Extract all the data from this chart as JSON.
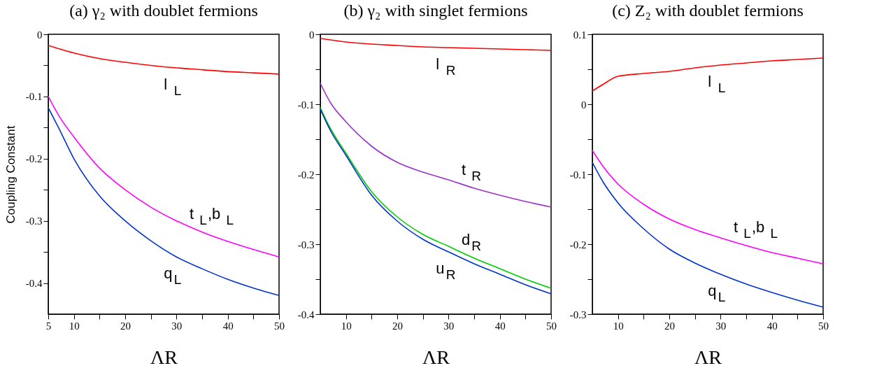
{
  "chart_data": [
    {
      "type": "line",
      "title": "(a)  γ₂  with doublet fermions",
      "xlabel": "ΛR",
      "ylabel": "Coupling Constant",
      "grid": false,
      "legend": false,
      "x": [
        5,
        7,
        10,
        15,
        20,
        25,
        30,
        35,
        40,
        45,
        50
      ],
      "xlim": [
        5,
        50
      ],
      "xticks": [
        5,
        10,
        {
          "value": 15,
          "label": null
        },
        20,
        {
          "value": 25,
          "label": null
        },
        30,
        {
          "value": 35,
          "label": null
        },
        40,
        {
          "value": 45,
          "label": null
        },
        50
      ],
      "ylim": [
        -0.45,
        0
      ],
      "yticks": [
        0,
        {
          "value": -0.05,
          "label": null
        },
        -0.1,
        {
          "value": -0.15,
          "label": null
        },
        -0.2,
        {
          "value": -0.25,
          "label": null
        },
        -0.3,
        {
          "value": -0.35,
          "label": null
        },
        -0.4
      ],
      "series": [
        {
          "name": "l$_{L}$",
          "color": "#ff0000",
          "values": [
            -0.018,
            -0.023,
            -0.03,
            -0.039,
            -0.045,
            -0.05,
            -0.054,
            -0.057,
            -0.06,
            -0.062,
            -0.064
          ]
        },
        {
          "name": "t$_{L}$,b$_{L}$",
          "color": "#ff00ff",
          "values": [
            -0.1,
            -0.13,
            -0.165,
            -0.215,
            -0.25,
            -0.278,
            -0.3,
            -0.318,
            -0.333,
            -0.346,
            -0.358
          ]
        },
        {
          "name": "q$_{L}$",
          "color": "#0033cc",
          "values": [
            -0.118,
            -0.15,
            -0.2,
            -0.26,
            -0.3,
            -0.332,
            -0.358,
            -0.377,
            -0.394,
            -0.408,
            -0.42
          ]
        }
      ]
    },
    {
      "type": "line",
      "title": "(b)  γ₂  with singlet fermions",
      "xlabel": "ΛR",
      "grid": false,
      "legend": false,
      "x": [
        5,
        7,
        10,
        15,
        20,
        25,
        30,
        35,
        40,
        45,
        50
      ],
      "xlim": [
        5,
        50
      ],
      "xticks": [
        10,
        {
          "value": 15,
          "label": null
        },
        20,
        {
          "value": 25,
          "label": null
        },
        30,
        {
          "value": 35,
          "label": null
        },
        40,
        {
          "value": 45,
          "label": null
        },
        50
      ],
      "ylim": [
        -0.4,
        0
      ],
      "yticks": [
        0,
        {
          "value": -0.05,
          "label": null
        },
        -0.1,
        {
          "value": -0.15,
          "label": null
        },
        -0.2,
        {
          "value": -0.25,
          "label": null
        },
        -0.3,
        {
          "value": -0.35,
          "label": null
        },
        -0.4
      ],
      "series": [
        {
          "name": "l$_{R}$",
          "color": "#ff0000",
          "values": [
            -0.006,
            -0.008,
            -0.011,
            -0.014,
            -0.016,
            -0.018,
            -0.019,
            -0.02,
            -0.021,
            -0.022,
            -0.023
          ]
        },
        {
          "name": "t$_{R}$",
          "color": "#9933cc",
          "values": [
            -0.07,
            -0.098,
            -0.125,
            -0.16,
            -0.183,
            -0.197,
            -0.208,
            -0.22,
            -0.23,
            -0.239,
            -0.247
          ]
        },
        {
          "name": "d$_{R}$",
          "color": "#00cc00",
          "values": [
            -0.105,
            -0.135,
            -0.17,
            -0.225,
            -0.261,
            -0.286,
            -0.303,
            -0.32,
            -0.335,
            -0.35,
            -0.363
          ]
        },
        {
          "name": "u$_{R}$",
          "color": "#0033cc",
          "values": [
            -0.107,
            -0.138,
            -0.173,
            -0.23,
            -0.267,
            -0.293,
            -0.311,
            -0.328,
            -0.343,
            -0.358,
            -0.371
          ]
        }
      ]
    },
    {
      "type": "line",
      "title": "(c)  Z₂  with doublet fermions",
      "xlabel": "ΛR",
      "grid": false,
      "legend": false,
      "x": [
        5,
        7,
        10,
        15,
        20,
        25,
        30,
        35,
        40,
        45,
        50
      ],
      "xlim": [
        5,
        50
      ],
      "xticks": [
        10,
        {
          "value": 15,
          "label": null
        },
        20,
        {
          "value": 25,
          "label": null
        },
        30,
        {
          "value": 35,
          "label": null
        },
        40,
        {
          "value": 45,
          "label": null
        },
        50
      ],
      "ylim": [
        -0.3,
        0.1
      ],
      "yticks": [
        0.1,
        {
          "value": 0.05,
          "label": null
        },
        0,
        {
          "value": -0.05,
          "label": null
        },
        -0.1,
        {
          "value": -0.15,
          "label": null
        },
        -0.2,
        {
          "value": -0.25,
          "label": null
        },
        -0.3
      ],
      "series": [
        {
          "name": "l$_{L}$",
          "color": "#ff0000",
          "values": [
            0.019,
            0.028,
            0.04,
            0.044,
            0.047,
            0.052,
            0.056,
            0.059,
            0.062,
            0.064,
            0.066
          ]
        },
        {
          "name": "t$_{L}$,b$_{L}$",
          "color": "#ff00ff",
          "values": [
            -0.066,
            -0.088,
            -0.114,
            -0.143,
            -0.164,
            -0.179,
            -0.191,
            -0.202,
            -0.212,
            -0.22,
            -0.228
          ]
        },
        {
          "name": "q$_{L}$",
          "color": "#0033cc",
          "values": [
            -0.083,
            -0.11,
            -0.141,
            -0.178,
            -0.207,
            -0.227,
            -0.243,
            -0.257,
            -0.269,
            -0.28,
            -0.29
          ]
        }
      ]
    }
  ]
}
